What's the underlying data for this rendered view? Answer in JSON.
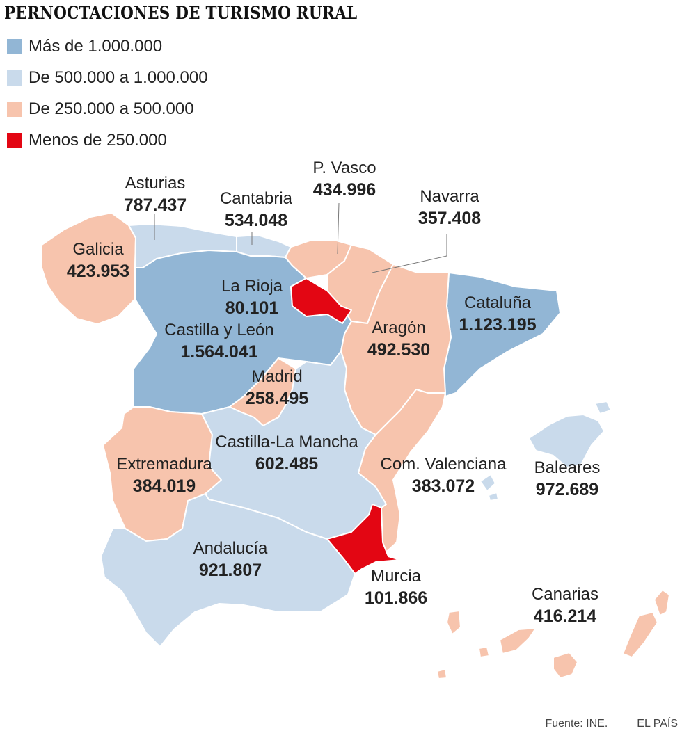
{
  "title": "PERNOCTACIONES DE TURISMO RURAL",
  "legend": [
    {
      "label": "Más de 1.000.000",
      "color": "#92b6d5"
    },
    {
      "label": "De 500.000 a 1.000.000",
      "color": "#c9daeb"
    },
    {
      "label": "De 250.000 a 500.000",
      "color": "#f7c4ad"
    },
    {
      "label": "Menos de 250.000",
      "color": "#e30613"
    }
  ],
  "regions": [
    {
      "name": "Galicia",
      "value": "423.953",
      "color": "#f7c4ad"
    },
    {
      "name": "Asturias",
      "value": "787.437",
      "color": "#c9daeb"
    },
    {
      "name": "Cantabria",
      "value": "534.048",
      "color": "#c9daeb"
    },
    {
      "name": "P. Vasco",
      "value": "434.996",
      "color": "#f7c4ad"
    },
    {
      "name": "Navarra",
      "value": "357.408",
      "color": "#f7c4ad"
    },
    {
      "name": "La Rioja",
      "value": "80.101",
      "color": "#e30613"
    },
    {
      "name": "Castilla y León",
      "value": "1.564.041",
      "color": "#92b6d5"
    },
    {
      "name": "Cataluña",
      "value": "1.123.195",
      "color": "#92b6d5"
    },
    {
      "name": "Aragón",
      "value": "492.530",
      "color": "#f7c4ad"
    },
    {
      "name": "Madrid",
      "value": "258.495",
      "color": "#f7c4ad"
    },
    {
      "name": "Castilla-La Mancha",
      "value": "602.485",
      "color": "#c9daeb"
    },
    {
      "name": "Extremadura",
      "value": "384.019",
      "color": "#f7c4ad"
    },
    {
      "name": "Com. Valenciana",
      "value": "383.072",
      "color": "#f7c4ad"
    },
    {
      "name": "Baleares",
      "value": "972.689",
      "color": "#c9daeb"
    },
    {
      "name": "Andalucía",
      "value": "921.807",
      "color": "#c9daeb"
    },
    {
      "name": "Murcia",
      "value": "101.866",
      "color": "#e30613"
    },
    {
      "name": "Canarias",
      "value": "416.214",
      "color": "#f7c4ad"
    }
  ],
  "footer": {
    "source": "Fuente: INE.",
    "brand": "EL PAÍS"
  }
}
